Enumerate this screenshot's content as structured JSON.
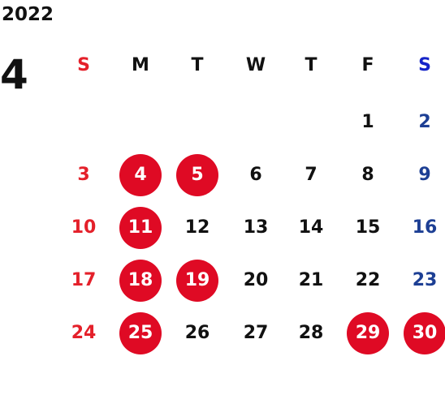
{
  "calendar": {
    "year": "2022",
    "month": "4",
    "weekdays": [
      "S",
      "M",
      "T",
      "W",
      "T",
      "F",
      "S"
    ],
    "weeks": [
      [
        "",
        "",
        "",
        "",
        "",
        "1",
        "2"
      ],
      [
        "3",
        "4",
        "5",
        "6",
        "7",
        "8",
        "9"
      ],
      [
        "10",
        "11",
        "12",
        "13",
        "14",
        "15",
        "16"
      ],
      [
        "17",
        "18",
        "19",
        "20",
        "21",
        "22",
        "23"
      ],
      [
        "24",
        "25",
        "26",
        "27",
        "28",
        "29",
        "30"
      ]
    ],
    "highlighted_days": [
      "4",
      "5",
      "11",
      "18",
      "19",
      "25",
      "29",
      "30"
    ]
  },
  "colors": {
    "sunday": "#e4202a",
    "saturday": "#1d3f94",
    "saturday_header": "#1524c8",
    "weekday": "#111111",
    "highlight_fill": "#df0a24",
    "highlight_text": "#ffffff"
  }
}
